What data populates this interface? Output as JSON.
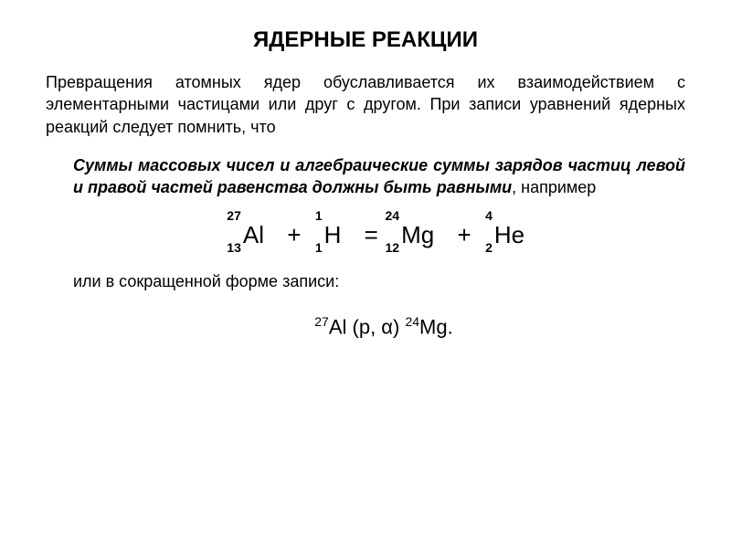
{
  "title": "ЯДЕРНЫЕ РЕАКЦИИ",
  "para1": "Превращения атомных ядер обуславливается их взаимодействием с элементарными частицами или друг с другом. При записи уравнений ядерных реакций следует помнить, что",
  "para2_bold": "Суммы массовых чисел и алгебраические суммы зарядов частиц левой и правой частей равенства должны быть равными",
  "para2_tail": ", например",
  "equation": {
    "n1": {
      "mass": "27",
      "charge": "13",
      "elem": "Al"
    },
    "op1": "+",
    "n2": {
      "mass": "1",
      "charge": "1",
      "elem": "H"
    },
    "op2": "=",
    "n3": {
      "mass": "24",
      "charge": "12",
      "elem": "Mg"
    },
    "op3": "+",
    "n4": {
      "mass": "4",
      "charge": "2",
      "elem": "He"
    }
  },
  "para3": "или в сокращенной форме записи:",
  "eq2": {
    "sup1": "27",
    "el1": "Al (p, α) ",
    "sup2": "24",
    "el2": "Mg."
  },
  "styles": {
    "background_color": "#ffffff",
    "text_color": "#000000",
    "title_fontsize": 24,
    "body_fontsize": 18,
    "equation_fontsize": 26,
    "subscript_fontsize": 14,
    "font_family": "Arial"
  }
}
